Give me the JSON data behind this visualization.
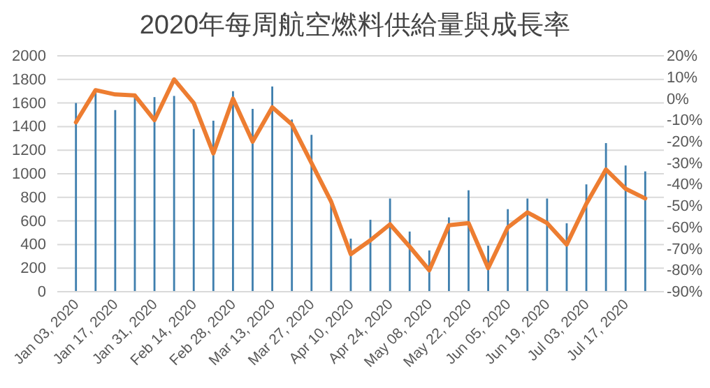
{
  "chart_data": {
    "type": "bar",
    "title": "2020年每周航空燃料供給量與成長率",
    "categories": [
      "Jan 03, 2020",
      null,
      "Jan 17, 2020",
      null,
      "Jan 31, 2020",
      null,
      "Feb 14, 2020",
      null,
      "Feb 28, 2020",
      null,
      "Mar 13, 2020",
      null,
      "Mar 27, 2020",
      null,
      "Apr 10, 2020",
      null,
      "Apr 24, 2020",
      null,
      "May 08, 2020",
      null,
      "May 22, 2020",
      null,
      "Jun 05, 2020",
      null,
      "Jun 19, 2020",
      null,
      "Jul 03, 2020",
      null,
      "Jul 17, 2020",
      null
    ],
    "series": [
      {
        "color": "#3f7fae",
        "values": [
          1600,
          1700,
          1540,
          1670,
          1650,
          1660,
          1380,
          1450,
          1700,
          1550,
          1740,
          1460,
          1330,
          740,
          450,
          610,
          790,
          510,
          350,
          630,
          860,
          390,
          700,
          790,
          790,
          580,
          910,
          1260,
          1070,
          1020
        ]
      },
      {
        "type": "line",
        "axis": "y2",
        "color": "#ed7d31",
        "values": [
          -11,
          4,
          2,
          1.5,
          -10,
          9,
          -2,
          -25.5,
          0,
          -20,
          -4,
          -12,
          -30,
          -48,
          -72.5,
          -66,
          -58.6,
          -69,
          -80,
          -59,
          -58,
          -79,
          -60,
          -53,
          -58,
          -68,
          -49,
          -33,
          -42,
          -46.5
        ]
      }
    ],
    "ylim": [
      0,
      2000
    ],
    "yticks": [
      0,
      200,
      400,
      600,
      800,
      1000,
      1200,
      1400,
      1600,
      1800,
      2000
    ],
    "y2lim": [
      -90,
      20
    ],
    "y2ticks": [
      {
        "value": -90,
        "label": "-90%"
      },
      {
        "value": -80,
        "label": "-80%"
      },
      {
        "value": -70,
        "label": "-70%"
      },
      {
        "value": -60,
        "label": "-60%"
      },
      {
        "value": -50,
        "label": "-50%"
      },
      {
        "value": -40,
        "label": "-40%"
      },
      {
        "value": -30,
        "label": "-30%"
      },
      {
        "value": -20,
        "label": "-20%"
      },
      {
        "value": -10,
        "label": "-10%"
      },
      {
        "value": 0,
        "label": "0%"
      },
      {
        "value": 10,
        "label": "10%"
      },
      {
        "value": 20,
        "label": "20%"
      }
    ],
    "grid": "y",
    "line_style": "solid",
    "marker": "none"
  }
}
